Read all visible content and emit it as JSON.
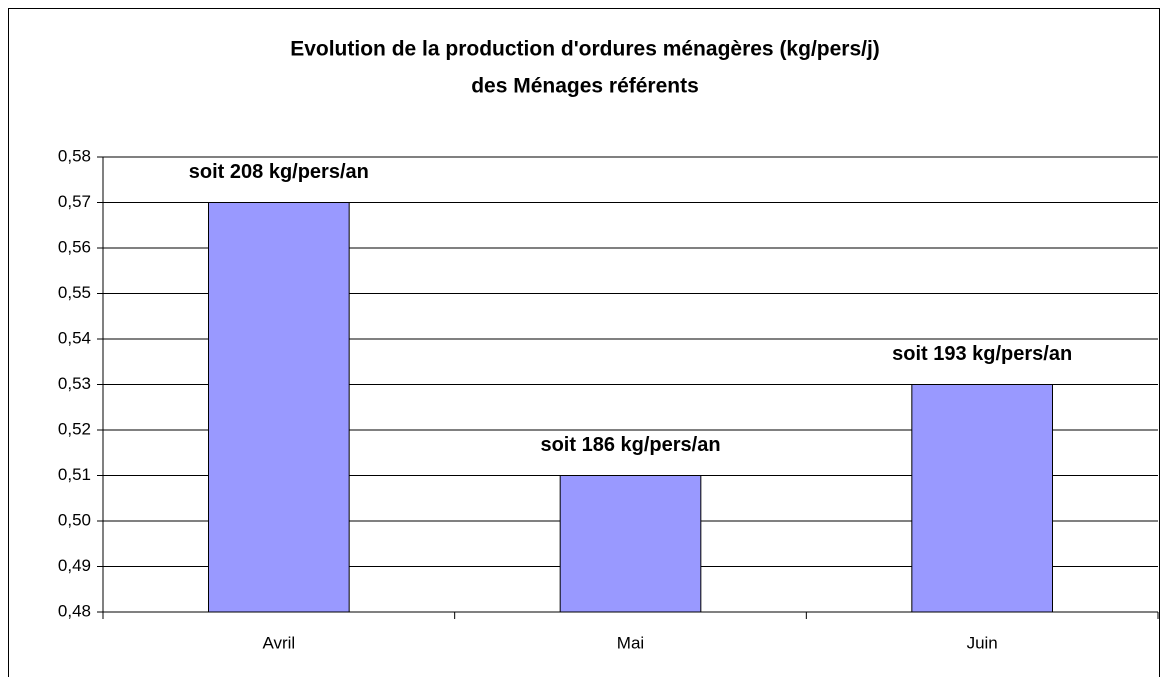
{
  "chart_data": {
    "type": "bar",
    "title": "Evolution de la production d'ordures ménagères (kg/pers/j)",
    "subtitle": "des Ménages référents",
    "categories": [
      "Avril",
      "Mai",
      "Juin"
    ],
    "values": [
      0.57,
      0.51,
      0.53
    ],
    "annotations": [
      "soit 208 kg/pers/an",
      "soit 186 kg/pers/an",
      "soit 193 kg/pers/an"
    ],
    "color": "#9999ff",
    "ylim": [
      0.48,
      0.58
    ],
    "yticks": [
      {
        "value": 0.48,
        "label": "0,48"
      },
      {
        "value": 0.49,
        "label": "0,49"
      },
      {
        "value": 0.5,
        "label": "0,50"
      },
      {
        "value": 0.51,
        "label": "0,51"
      },
      {
        "value": 0.52,
        "label": "0,52"
      },
      {
        "value": 0.53,
        "label": "0,53"
      },
      {
        "value": 0.54,
        "label": "0,54"
      },
      {
        "value": 0.55,
        "label": "0,55"
      },
      {
        "value": 0.56,
        "label": "0,56"
      },
      {
        "value": 0.57,
        "label": "0,57"
      },
      {
        "value": 0.58,
        "label": "0,58"
      }
    ],
    "grid": true
  }
}
